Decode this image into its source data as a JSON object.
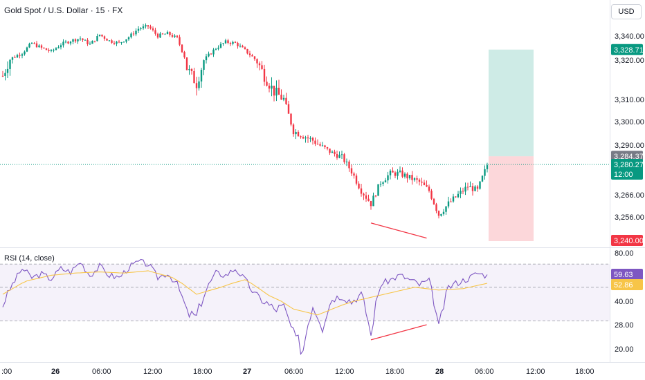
{
  "header": {
    "title": "Gold Spot / U.S. Dollar · 15 · FX",
    "currency_button": "USD"
  },
  "colors": {
    "up": "#089981",
    "down": "#f23645",
    "rsi_line": "#7e57c2",
    "rsi_ma": "#f7c548",
    "rsi_band": "#7e57c2",
    "profit_zone": "#089981",
    "loss_zone": "#f23645",
    "divergence": "#f23645",
    "last_price": "#089981"
  },
  "price_axis": {
    "ticks": [
      {
        "value": 3340,
        "label": "3,340.00"
      },
      {
        "value": 3320,
        "label": "3,320.00"
      },
      {
        "value": 3310,
        "label": "3,310.00"
      },
      {
        "value": 3300,
        "label": "3,300.00"
      },
      {
        "value": 3290,
        "label": "3,290.00"
      },
      {
        "value": 3266,
        "label": "3,266.00"
      },
      {
        "value": 3256,
        "label": "3,256.00"
      }
    ],
    "badges": [
      {
        "value": 3328.71,
        "label": "3,328.71",
        "color": "#089981"
      },
      {
        "value": 3284.37,
        "label": "3,284.37",
        "color": "#787b86"
      },
      {
        "value": 3280.27,
        "label": "3,280.27",
        "sub": "12:00",
        "color": "#089981"
      },
      {
        "value": 3240.0,
        "label": "3,240.00",
        "color": "#f23645"
      }
    ]
  },
  "rsi_axis": {
    "ticks": [
      {
        "value": 80,
        "label": "80.00"
      },
      {
        "value": 40,
        "label": "40.00"
      },
      {
        "value": 28,
        "label": "28.00"
      },
      {
        "value": 20,
        "label": "20.00"
      }
    ],
    "badges": [
      {
        "value": 59.63,
        "label": "59.63",
        "color": "#7e57c2"
      },
      {
        "value": 52.86,
        "label": "52.86",
        "color": "#f7c548"
      }
    ]
  },
  "time_axis": [
    {
      "label": ":00",
      "bold": false
    },
    {
      "label": "26",
      "bold": true
    },
    {
      "label": "06:00",
      "bold": false
    },
    {
      "label": "12:00",
      "bold": false
    },
    {
      "label": "18:00",
      "bold": false
    },
    {
      "label": "27",
      "bold": true
    },
    {
      "label": "06:00",
      "bold": false
    },
    {
      "label": "12:00",
      "bold": false
    },
    {
      "label": "18:00",
      "bold": false
    },
    {
      "label": "28",
      "bold": true
    },
    {
      "label": "06:00",
      "bold": false
    },
    {
      "label": "12:00",
      "bold": false
    },
    {
      "label": "18:00",
      "bold": false
    }
  ],
  "rsi_title": "RSI (14, close)",
  "chart_data": [
    {
      "type": "candlestick",
      "title": "Gold Spot / U.S. Dollar · 15 · FX",
      "x_unit": "bar index (15-minute bars)",
      "ylim": [
        3240,
        3348
      ],
      "last_price": 3280.27,
      "price_path": [
        [
          0,
          3316
        ],
        [
          4,
          3322
        ],
        [
          8,
          3326
        ],
        [
          12,
          3334
        ],
        [
          16,
          3330
        ],
        [
          20,
          3327
        ],
        [
          24,
          3333
        ],
        [
          28,
          3336
        ],
        [
          32,
          3338
        ],
        [
          36,
          3333
        ],
        [
          40,
          3341
        ],
        [
          44,
          3336
        ],
        [
          48,
          3334
        ],
        [
          52,
          3339
        ],
        [
          56,
          3346
        ],
        [
          60,
          3348
        ],
        [
          64,
          3340
        ],
        [
          68,
          3342
        ],
        [
          72,
          3338
        ],
        [
          76,
          3318
        ],
        [
          80,
          3314
        ],
        [
          84,
          3322
        ],
        [
          88,
          3330
        ],
        [
          92,
          3335
        ],
        [
          96,
          3334
        ],
        [
          100,
          3328
        ],
        [
          104,
          3321
        ],
        [
          108,
          3316
        ],
        [
          112,
          3312
        ],
        [
          116,
          3310
        ],
        [
          120,
          3296
        ],
        [
          124,
          3294
        ],
        [
          128,
          3292
        ],
        [
          132,
          3289
        ],
        [
          136,
          3286
        ],
        [
          140,
          3284
        ],
        [
          144,
          3277
        ],
        [
          148,
          3268
        ],
        [
          152,
          3262
        ],
        [
          156,
          3272
        ],
        [
          160,
          3276
        ],
        [
          164,
          3276
        ],
        [
          168,
          3274
        ],
        [
          172,
          3272
        ],
        [
          176,
          3268
        ],
        [
          180,
          3257
        ],
        [
          184,
          3262
        ],
        [
          188,
          3266
        ],
        [
          192,
          3270
        ],
        [
          196,
          3268
        ],
        [
          200,
          3280
        ]
      ],
      "trade_setup": {
        "take_profit": 3328.71,
        "entry": 3284.37,
        "stop_loss": 3240.0
      },
      "divergence_line": [
        [
          152,
          3252
        ],
        [
          175,
          3242
        ]
      ]
    },
    {
      "type": "line",
      "title": "RSI (14, close)",
      "ylim": [
        15,
        85
      ],
      "upper_band": 70,
      "lower_band": 30,
      "middle": 50,
      "series": [
        {
          "values_path": [
            [
              0,
              38
            ],
            [
              4,
              52
            ],
            [
              8,
              66
            ],
            [
              12,
              58
            ],
            [
              16,
              61
            ],
            [
              20,
              57
            ],
            [
              24,
              66
            ],
            [
              28,
              63
            ],
            [
              32,
              72
            ],
            [
              36,
              60
            ],
            [
              40,
              68
            ],
            [
              44,
              60
            ],
            [
              48,
              58
            ],
            [
              52,
              67
            ],
            [
              56,
              72
            ],
            [
              60,
              70
            ],
            [
              64,
              58
            ],
            [
              68,
              62
            ],
            [
              72,
              52
            ],
            [
              76,
              34
            ],
            [
              80,
              32
            ],
            [
              84,
              48
            ],
            [
              88,
              62
            ],
            [
              92,
              60
            ],
            [
              96,
              66
            ],
            [
              100,
              56
            ],
            [
              104,
              45
            ],
            [
              108,
              40
            ],
            [
              112,
              36
            ],
            [
              116,
              37
            ],
            [
              120,
              24
            ],
            [
              124,
              20
            ],
            [
              128,
              38
            ],
            [
              132,
              28
            ],
            [
              136,
              42
            ],
            [
              140,
              44
            ],
            [
              144,
              40
            ],
            [
              148,
              45
            ],
            [
              152,
              24
            ],
            [
              156,
              52
            ],
            [
              160,
              56
            ],
            [
              164,
              60
            ],
            [
              168,
              56
            ],
            [
              172,
              52
            ],
            [
              176,
              55
            ],
            [
              180,
              26
            ],
            [
              184,
              50
            ],
            [
              188,
              54
            ],
            [
              192,
              57
            ],
            [
              196,
              62
            ],
            [
              200,
              59.63
            ]
          ]
        },
        {
          "values_path": [
            [
              0,
              45
            ],
            [
              10,
              55
            ],
            [
              20,
              60
            ],
            [
              30,
              62
            ],
            [
              40,
              63
            ],
            [
              50,
              62
            ],
            [
              60,
              64
            ],
            [
              70,
              58
            ],
            [
              80,
              45
            ],
            [
              90,
              50
            ],
            [
              100,
              56
            ],
            [
              110,
              44
            ],
            [
              120,
              36
            ],
            [
              130,
              33
            ],
            [
              140,
              38
            ],
            [
              150,
              42
            ],
            [
              160,
              46
            ],
            [
              170,
              50
            ],
            [
              180,
              48
            ],
            [
              190,
              49
            ],
            [
              200,
              52.86
            ]
          ]
        }
      ],
      "divergence_line": [
        [
          152,
          23
        ],
        [
          175,
          28
        ]
      ]
    }
  ]
}
